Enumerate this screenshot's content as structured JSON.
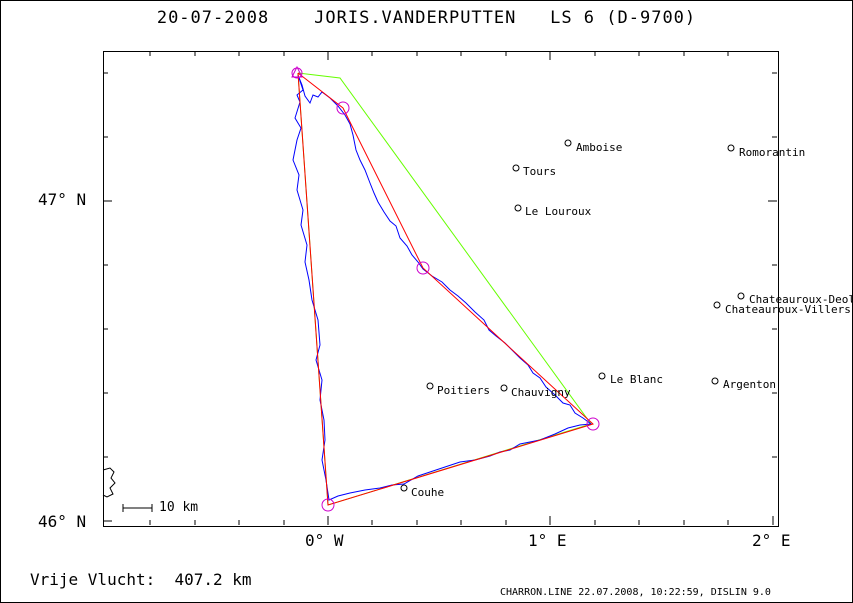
{
  "header": {
    "date": "20-07-2008",
    "pilot": "JORIS.VANDERPUTTEN",
    "glider": "LS 6 (D-9700)"
  },
  "axes": {
    "y_ticks": [
      "47° N",
      "46° N"
    ],
    "x_ticks": [
      "0° W",
      "1° E",
      "2° E"
    ]
  },
  "scale_bar": {
    "label": "10 km"
  },
  "towns": [
    {
      "name": "Amboise",
      "lon": 1.09,
      "lat": 47.18
    },
    {
      "name": "Romorantin",
      "lon": 1.82,
      "lat": 47.17
    },
    {
      "name": "Tours",
      "lon": 0.86,
      "lat": 47.11
    },
    {
      "name": "Le Louroux",
      "lon": 0.87,
      "lat": 46.98
    },
    {
      "name": "Chateauroux-Deols",
      "lon": 1.86,
      "lat": 46.7
    },
    {
      "name": "Chateauroux-Villers",
      "lon": 1.76,
      "lat": 46.67
    },
    {
      "name": "Le Blanc",
      "lon": 1.24,
      "lat": 46.47
    },
    {
      "name": "Argenton",
      "lon": 1.75,
      "lat": 46.45
    },
    {
      "name": "Poitiers",
      "lon": 0.46,
      "lat": 46.43
    },
    {
      "name": "Chauvigny",
      "lon": 0.8,
      "lat": 46.43
    },
    {
      "name": "Couhe",
      "lon": 0.35,
      "lat": 46.11
    }
  ],
  "task": {
    "turnpoints": [
      {
        "lon": -0.14,
        "lat": 47.4
      },
      {
        "lon": 0.08,
        "lat": 47.29
      },
      {
        "lon": 0.44,
        "lat": 46.79
      },
      {
        "lon": 1.2,
        "lat": 46.3
      },
      {
        "lon": 0.01,
        "lat": 46.06
      }
    ]
  },
  "footer": {
    "distance": "Vrije Vlucht:  407.2 km",
    "info": "CHARRON.LINE 22.07.2008, 10:22:59, DISLIN 9.0"
  },
  "colors": {
    "track": "#0000ff",
    "task_line": "#ff0000",
    "optimized_line": "#66ff00",
    "turnpoint": "#cc00cc"
  }
}
